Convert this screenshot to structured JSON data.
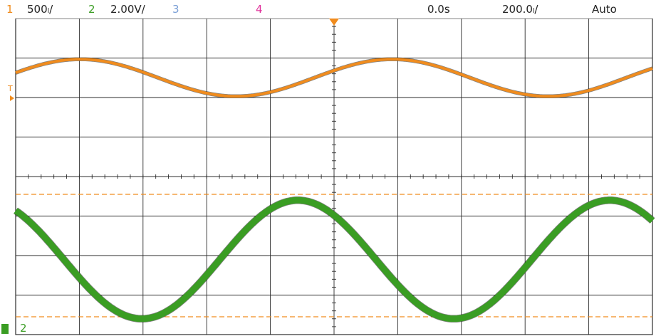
{
  "status_bar": {
    "ch1": {
      "number": "1",
      "scale": "500ₗ/",
      "color": "#f08c1e"
    },
    "ch2": {
      "number": "2",
      "scale": "2.00V/",
      "color": "#3a9d23"
    },
    "ch3": {
      "number": "3",
      "color": "#7a9fd6"
    },
    "ch4": {
      "number": "4",
      "color": "#e0309a"
    },
    "time_delay": "0.0s",
    "time_scale": "200.0ₗ/",
    "trigger_mode": "Auto"
  },
  "markers": {
    "trigger_level": "T",
    "ch2_ground_label": "2"
  },
  "colors": {
    "ch1_trace": "#f08c1e",
    "ch2_trace": "#3a9d23",
    "grid": "#2b2b2b",
    "cursor_line": "#f08c1e",
    "background": "#ffffff"
  },
  "chart_data": {
    "type": "line",
    "grid": {
      "x_divisions": 10,
      "y_divisions": 8
    },
    "series": [
      {
        "channel": "1",
        "shape": "sine",
        "period_div": 4.9,
        "amplitude_div": 0.47,
        "offset_div": 2.5,
        "phase_rad": 0.4
      },
      {
        "channel": "2",
        "shape": "sine",
        "period_div": 4.9,
        "amplitude_div": 1.5,
        "offset_div": -2.1,
        "phase_rad": 2.3
      }
    ],
    "cursors": [
      {
        "type": "horizontal",
        "level_div": -0.45
      },
      {
        "type": "horizontal",
        "level_div": -3.55
      }
    ]
  }
}
